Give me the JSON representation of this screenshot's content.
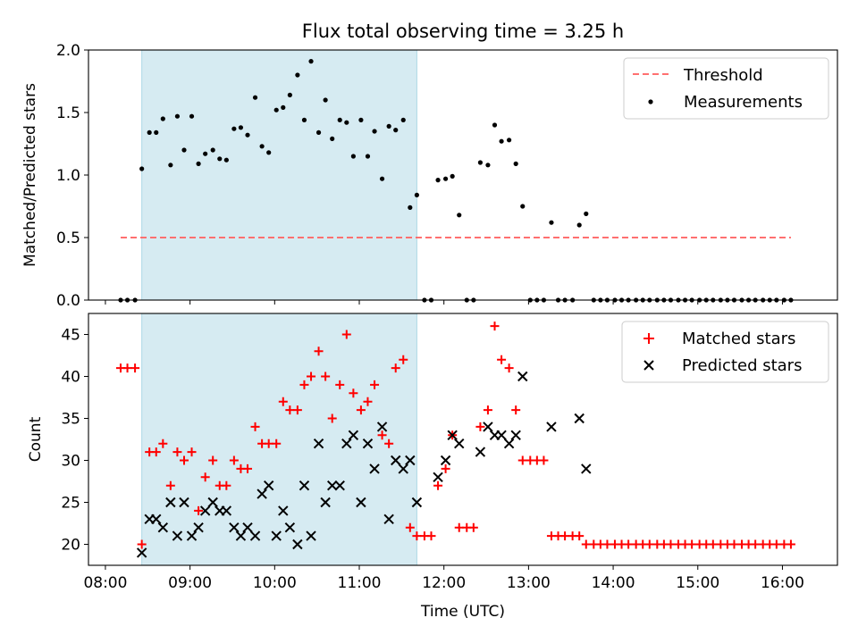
{
  "chart_data": [
    {
      "type": "scatter",
      "title": "Flux total observing time = 3.25 h",
      "xlabel": "",
      "ylabel": "Matched/Predicted stars",
      "xlim": [
        7.8,
        16.65
      ],
      "ylim": [
        0,
        2.0
      ],
      "yticks": [
        0.0,
        0.5,
        1.0,
        1.5,
        2.0
      ],
      "ytick_labels": [
        "0.0",
        "0.5",
        "1.0",
        "1.5",
        "2.0"
      ],
      "xticks": [
        8,
        9,
        10,
        11,
        12,
        13,
        14,
        15,
        16
      ],
      "shaded_interval": [
        8.43,
        11.68
      ],
      "threshold": {
        "label": "Threshold",
        "value": 0.5,
        "x_range": [
          8.18,
          16.1
        ],
        "color": "#ff7070"
      },
      "legend": [
        "Threshold",
        "Measurements"
      ],
      "legend_position": "upper-right",
      "series": [
        {
          "name": "Measurements",
          "color": "#000000",
          "x": [
            8.18,
            8.26,
            8.35,
            8.43,
            8.52,
            8.6,
            8.68,
            8.77,
            8.85,
            8.93,
            9.02,
            9.1,
            9.18,
            9.27,
            9.35,
            9.43,
            9.52,
            9.6,
            9.68,
            9.77,
            9.85,
            9.93,
            10.02,
            10.1,
            10.18,
            10.27,
            10.35,
            10.43,
            10.52,
            10.6,
            10.68,
            10.77,
            10.85,
            10.93,
            11.02,
            11.1,
            11.18,
            11.27,
            11.35,
            11.43,
            11.52,
            11.6,
            11.68,
            11.77,
            11.85,
            11.93,
            12.02,
            12.1,
            12.18,
            12.27,
            12.35,
            12.43,
            12.52,
            12.6,
            12.68,
            12.77,
            12.85,
            12.93,
            13.02,
            13.1,
            13.18,
            13.27,
            13.35,
            13.43,
            13.52,
            13.6,
            13.68,
            13.77,
            13.85,
            13.93,
            14.02,
            14.1,
            14.18,
            14.27,
            14.35,
            14.43,
            14.52,
            14.6,
            14.68,
            14.77,
            14.85,
            14.93,
            15.02,
            15.1,
            15.18,
            15.27,
            15.35,
            15.43,
            15.52,
            15.6,
            15.68,
            15.77,
            15.85,
            15.93,
            16.02,
            16.1
          ],
          "y": [
            0,
            0,
            0,
            1.05,
            1.34,
            1.34,
            1.45,
            1.08,
            1.47,
            1.2,
            1.47,
            1.09,
            1.17,
            1.2,
            1.13,
            1.12,
            1.37,
            1.38,
            1.32,
            1.62,
            1.23,
            1.18,
            1.52,
            1.54,
            1.64,
            1.8,
            1.44,
            1.91,
            1.34,
            1.6,
            1.29,
            1.44,
            1.42,
            1.15,
            1.44,
            1.15,
            1.35,
            0.97,
            1.39,
            1.36,
            1.44,
            0.74,
            0.84,
            0,
            0,
            0.96,
            0.97,
            0.99,
            0.68,
            0,
            0,
            1.1,
            1.08,
            1.4,
            1.27,
            1.28,
            1.09,
            0.75,
            0,
            0,
            0,
            0.62,
            0,
            0,
            0,
            0.6,
            0.69,
            0,
            0,
            0,
            0,
            0,
            0,
            0,
            0,
            0,
            0,
            0,
            0,
            0,
            0,
            0,
            0,
            0,
            0,
            0,
            0,
            0,
            0,
            0,
            0,
            0,
            0,
            0,
            0,
            0
          ]
        }
      ]
    },
    {
      "type": "scatter",
      "title": "",
      "xlabel": "Time (UTC)",
      "ylabel": "Count",
      "xlim": [
        7.8,
        16.65
      ],
      "ylim": [
        17.5,
        47.5
      ],
      "yticks": [
        20,
        25,
        30,
        35,
        40,
        45
      ],
      "ytick_labels": [
        "20",
        "25",
        "30",
        "35",
        "40",
        "45"
      ],
      "xticks": [
        8,
        9,
        10,
        11,
        12,
        13,
        14,
        15,
        16
      ],
      "xtick_labels": [
        "08:00",
        "09:00",
        "10:00",
        "11:00",
        "12:00",
        "13:00",
        "14:00",
        "15:00",
        "16:00"
      ],
      "shaded_interval": [
        8.43,
        11.68
      ],
      "legend": [
        "Matched stars",
        "Predicted stars"
      ],
      "legend_position": "upper-right",
      "series": [
        {
          "name": "Matched stars",
          "marker": "+",
          "color": "#ff0000",
          "x": [
            8.18,
            8.26,
            8.35,
            8.43,
            8.52,
            8.6,
            8.68,
            8.77,
            8.85,
            8.93,
            9.02,
            9.1,
            9.18,
            9.27,
            9.35,
            9.43,
            9.52,
            9.6,
            9.68,
            9.77,
            9.85,
            9.93,
            10.02,
            10.1,
            10.18,
            10.27,
            10.35,
            10.43,
            10.52,
            10.6,
            10.68,
            10.77,
            10.85,
            10.93,
            11.02,
            11.1,
            11.18,
            11.27,
            11.35,
            11.43,
            11.52,
            11.6,
            11.68,
            11.77,
            11.85,
            11.93,
            12.02,
            12.1,
            12.18,
            12.27,
            12.35,
            12.43,
            12.52,
            12.6,
            12.68,
            12.77,
            12.85,
            12.93,
            13.02,
            13.1,
            13.18,
            13.27,
            13.35,
            13.43,
            13.52,
            13.6,
            13.68,
            13.77,
            13.85,
            13.93,
            14.02,
            14.1,
            14.18,
            14.27,
            14.35,
            14.43,
            14.52,
            14.6,
            14.68,
            14.77,
            14.85,
            14.93,
            15.02,
            15.1,
            15.18,
            15.27,
            15.35,
            15.43,
            15.52,
            15.6,
            15.68,
            15.77,
            15.85,
            15.93,
            16.02,
            16.1
          ],
          "y": [
            41,
            41,
            41,
            20,
            31,
            31,
            32,
            27,
            31,
            30,
            31,
            24,
            28,
            30,
            27,
            27,
            30,
            29,
            29,
            34,
            32,
            32,
            32,
            37,
            36,
            36,
            39,
            40,
            43,
            40,
            35,
            39,
            45,
            38,
            36,
            37,
            39,
            33,
            32,
            41,
            42,
            22,
            21,
            21,
            21,
            27,
            29,
            33,
            22,
            22,
            22,
            34,
            36,
            46,
            42,
            41,
            36,
            30,
            30,
            30,
            30,
            21,
            21,
            21,
            21,
            21,
            20,
            20,
            20,
            20,
            20,
            20,
            20,
            20,
            20,
            20,
            20,
            20,
            20,
            20,
            20,
            20,
            20,
            20,
            20,
            20,
            20,
            20,
            20,
            20,
            20,
            20,
            20,
            20,
            20,
            20
          ]
        },
        {
          "name": "Predicted stars",
          "marker": "x",
          "color": "#000000",
          "x": [
            8.43,
            8.52,
            8.6,
            8.68,
            8.77,
            8.85,
            8.93,
            9.02,
            9.1,
            9.18,
            9.27,
            9.35,
            9.43,
            9.52,
            9.6,
            9.68,
            9.77,
            9.85,
            9.93,
            10.02,
            10.1,
            10.18,
            10.27,
            10.35,
            10.43,
            10.52,
            10.6,
            10.68,
            10.77,
            10.85,
            10.93,
            11.02,
            11.1,
            11.18,
            11.27,
            11.35,
            11.43,
            11.52,
            11.6,
            11.68,
            11.93,
            12.02,
            12.1,
            12.18,
            12.43,
            12.52,
            12.6,
            12.68,
            12.77,
            12.85,
            12.93,
            13.27,
            13.6,
            13.68
          ],
          "y": [
            19,
            23,
            23,
            22,
            25,
            21,
            25,
            21,
            22,
            24,
            25,
            24,
            24,
            22,
            21,
            22,
            21,
            26,
            27,
            21,
            24,
            22,
            20,
            27,
            21,
            32,
            25,
            27,
            27,
            32,
            33,
            25,
            32,
            29,
            34,
            23,
            30,
            29,
            30,
            25,
            28,
            30,
            33,
            32,
            31,
            34,
            33,
            33,
            32,
            33,
            40,
            34,
            35,
            29
          ]
        }
      ]
    }
  ]
}
